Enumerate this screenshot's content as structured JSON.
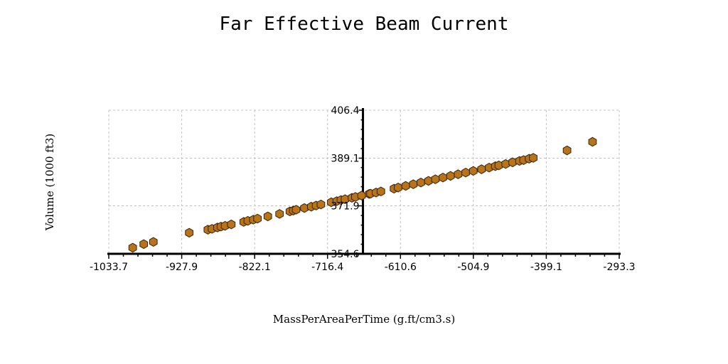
{
  "chart_data": {
    "type": "scatter",
    "title": "Far Effective Beam Current",
    "xlabel": "MassPerAreaPerTime (g.ft/cm3.s)",
    "ylabel": "Volume (1000 ft3)",
    "xlim": [
      -1033.7,
      -293.3
    ],
    "ylim": [
      354.6,
      406.4
    ],
    "x_ticks": [
      "-1033.7",
      "-927.9",
      "-822.1",
      "-716.4",
      "-610.6",
      "-504.9",
      "-399.1",
      "-293.3"
    ],
    "y_ticks": [
      "354.6",
      "371.9",
      "389.1",
      "406.4"
    ],
    "y_axis_at_x": -665,
    "grid": true,
    "marker": "hexagon",
    "colors": {
      "point_fill": "#b8741a",
      "point_stroke": "#3a2208"
    },
    "series": [
      {
        "points": [
          [
            -999,
            356.8
          ],
          [
            -983,
            358.1
          ],
          [
            -969,
            358.9
          ],
          [
            -917,
            362.2
          ],
          [
            -890,
            363.3
          ],
          [
            -884,
            363.6
          ],
          [
            -876,
            364.1
          ],
          [
            -871,
            364.4
          ],
          [
            -865,
            364.7
          ],
          [
            -856,
            365.2
          ],
          [
            -838,
            366.1
          ],
          [
            -832,
            366.5
          ],
          [
            -824,
            366.9
          ],
          [
            -818,
            367.3
          ],
          [
            -803,
            368.1
          ],
          [
            -786,
            369.0
          ],
          [
            -771,
            369.9
          ],
          [
            -766,
            370.2
          ],
          [
            -762,
            370.5
          ],
          [
            -750,
            371.1
          ],
          [
            -740,
            371.6
          ],
          [
            -733,
            372.0
          ],
          [
            -726,
            372.4
          ],
          [
            -711,
            373.2
          ],
          [
            -703,
            373.6
          ],
          [
            -697,
            374.0
          ],
          [
            -691,
            374.3
          ],
          [
            -681,
            374.8
          ],
          [
            -676,
            375.1
          ],
          [
            -667,
            375.6
          ],
          [
            -656,
            376.2
          ],
          [
            -654,
            376.3
          ],
          [
            -646,
            376.7
          ],
          [
            -639,
            377.1
          ],
          [
            -620,
            378.1
          ],
          [
            -614,
            378.5
          ],
          [
            -603,
            379.1
          ],
          [
            -592,
            379.7
          ],
          [
            -581,
            380.3
          ],
          [
            -570,
            380.9
          ],
          [
            -560,
            381.5
          ],
          [
            -549,
            382.1
          ],
          [
            -538,
            382.7
          ],
          [
            -527,
            383.3
          ],
          [
            -516,
            383.9
          ],
          [
            -505,
            384.5
          ],
          [
            -493,
            385.1
          ],
          [
            -482,
            385.7
          ],
          [
            -473,
            386.2
          ],
          [
            -468,
            386.5
          ],
          [
            -458,
            387.0
          ],
          [
            -448,
            387.6
          ],
          [
            -438,
            388.1
          ],
          [
            -432,
            388.4
          ],
          [
            -424,
            388.9
          ],
          [
            -418,
            389.2
          ],
          [
            -369,
            391.9
          ],
          [
            -332,
            395.0
          ]
        ]
      }
    ]
  }
}
